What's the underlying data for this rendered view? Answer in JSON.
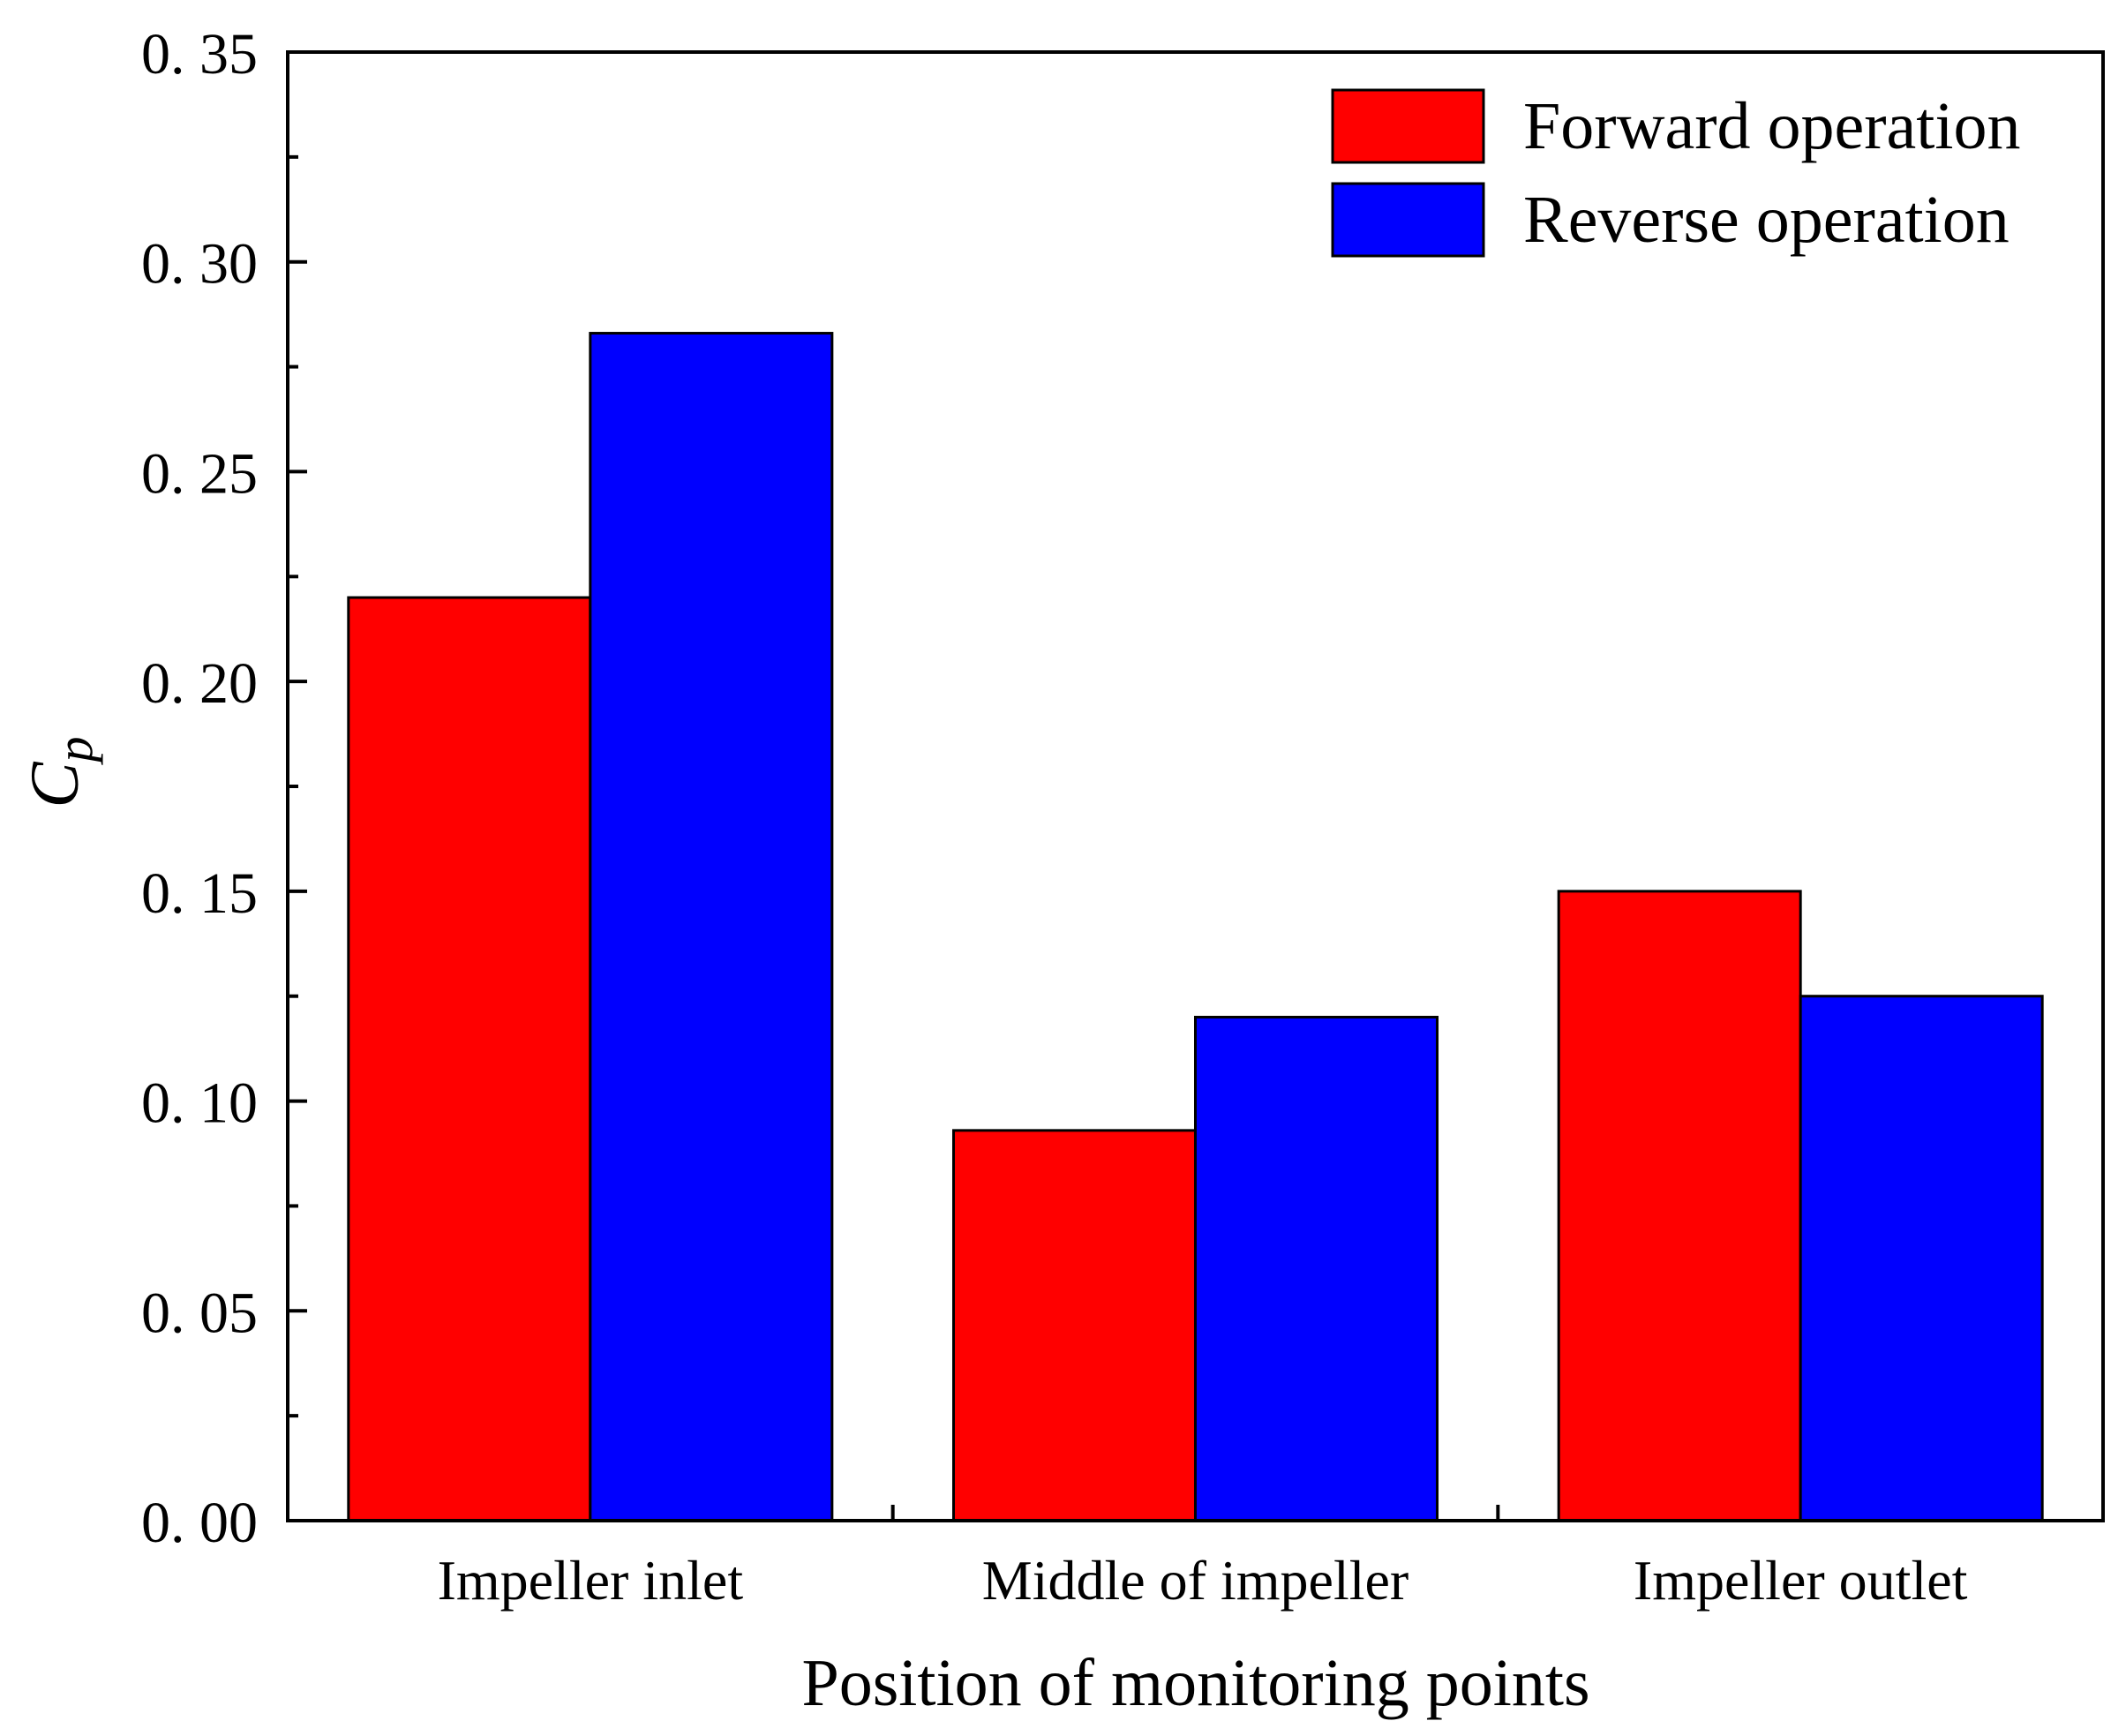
{
  "chart_data": {
    "type": "bar",
    "title": "",
    "xlabel": "Position of monitoring points",
    "ylabel": {
      "main": "C",
      "subscript": "p"
    },
    "categories": [
      "Impeller inlet",
      "Middle of impeller",
      "Impeller outlet"
    ],
    "series": [
      {
        "name": "Forward operation",
        "color": "#ff0000",
        "values": [
          0.22,
          0.093,
          0.15
        ]
      },
      {
        "name": "Reverse operation",
        "color": "#0000ff",
        "values": [
          0.283,
          0.12,
          0.125
        ]
      }
    ],
    "ylim": [
      0,
      0.35
    ],
    "yticks": [
      {
        "value": 0.0,
        "label": "0. 00"
      },
      {
        "value": 0.05,
        "label": "0. 05"
      },
      {
        "value": 0.1,
        "label": "0. 10"
      },
      {
        "value": 0.15,
        "label": "0. 15"
      },
      {
        "value": 0.2,
        "label": "0. 20"
      },
      {
        "value": 0.25,
        "label": "0. 25"
      },
      {
        "value": 0.3,
        "label": "0. 30"
      },
      {
        "value": 0.35,
        "label": "0. 35"
      }
    ],
    "yminor_step": 0.025,
    "grid": false,
    "legend": "top-right"
  }
}
